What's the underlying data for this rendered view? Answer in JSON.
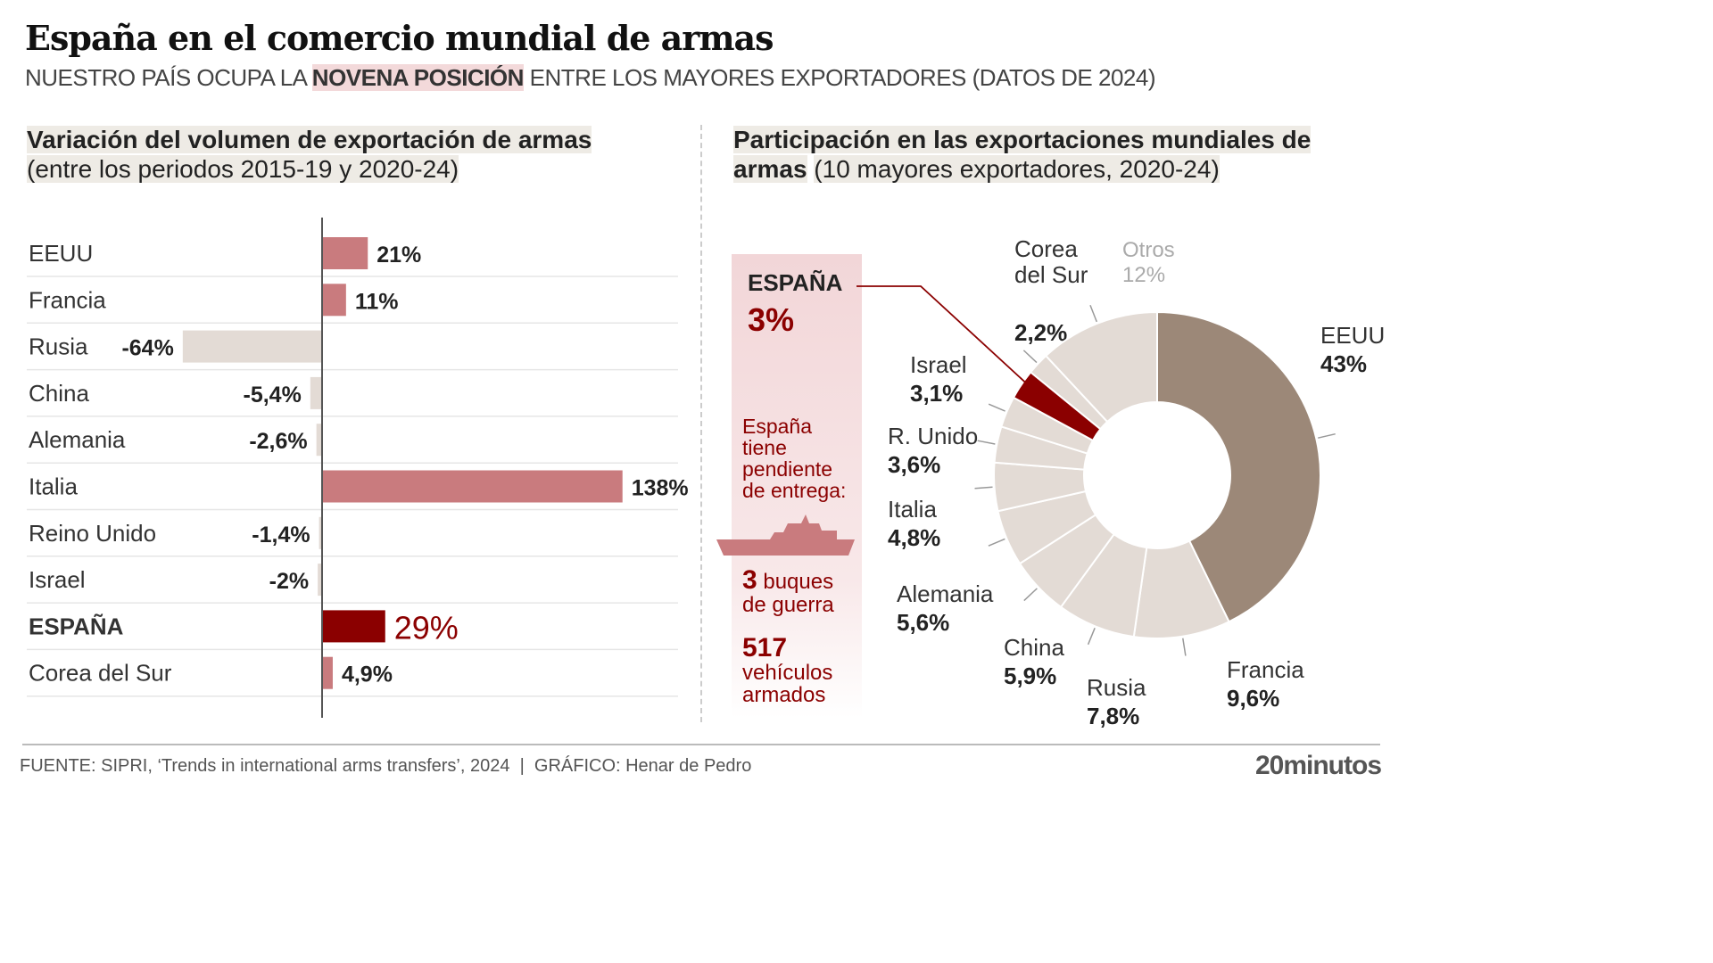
{
  "header": {
    "title": "España en el comercio mundial de armas",
    "subtitle_pre": "NUESTRO PAÍS OCUPA LA ",
    "subtitle_hl": "NOVENA POSICIÓN",
    "subtitle_post": " ENTRE LOS MAYORES EXPORTADORES (DATOS DE 2024)"
  },
  "chart_data": [
    {
      "type": "bar",
      "orientation": "horizontal",
      "title": "Variación del volumen de exportación de armas",
      "subtitle": "(entre los periodos 2015-19 y 2020-24)",
      "categories": [
        "EEUU",
        "Francia",
        "Rusia",
        "China",
        "Alemania",
        "Italia",
        "Reino Unido",
        "Israel",
        "ESPAÑA",
        "Corea del Sur"
      ],
      "values": [
        21,
        11,
        -64,
        -5.4,
        -2.6,
        138,
        -1.4,
        -2,
        29,
        4.9
      ],
      "labels": [
        "21%",
        "11%",
        "-64%",
        "-5,4%",
        "-2,6%",
        "138%",
        "-1,4%",
        "-2%",
        "29%",
        "4,9%"
      ],
      "colors": {
        "positive": "#c97b7e",
        "negative": "#e3dbd5",
        "highlight": "#8b0000"
      },
      "highlight": "ESPAÑA"
    },
    {
      "type": "pie",
      "donut": true,
      "title_bold": "Participación en las exportaciones mundiales de armas",
      "title_rest": "(10 mayores exportadores, 2020-24)",
      "categories": [
        "EEUU",
        "Francia",
        "Rusia",
        "China",
        "Alemania",
        "Italia",
        "R. Unido",
        "Israel",
        "ESPAÑA",
        "Corea del Sur",
        "Otros"
      ],
      "values": [
        43,
        9.6,
        7.8,
        5.9,
        5.6,
        4.8,
        3.6,
        3.1,
        3,
        2.2,
        12
      ],
      "labels": [
        "43%",
        "9,6%",
        "7,8%",
        "5,9%",
        "5,6%",
        "4,8%",
        "3,6%",
        "3,1%",
        "3%",
        "2,2%",
        "12%"
      ],
      "colors": {
        "EEUU": "#9c8878",
        "others": "#e3dbd5",
        "highlight": "#8b0000"
      }
    }
  ],
  "side": {
    "country": "ESPAÑA",
    "share": "3%",
    "text": "España tiene pendiente de entrega:",
    "ships_n": "3",
    "ships": " buques de guerra",
    "vehicles_n": "517",
    "vehicles": "vehículos armados",
    "icon": "warship-icon"
  },
  "labels": {
    "corea1": "Corea",
    "corea2": "del Sur",
    "otros": "Otros"
  },
  "footer": {
    "source": "FUENTE: SIPRI, ‘Trends in international arms transfers’, 2024  |  GRÁFICO: Henar de Pedro",
    "logo": "20minutos"
  }
}
